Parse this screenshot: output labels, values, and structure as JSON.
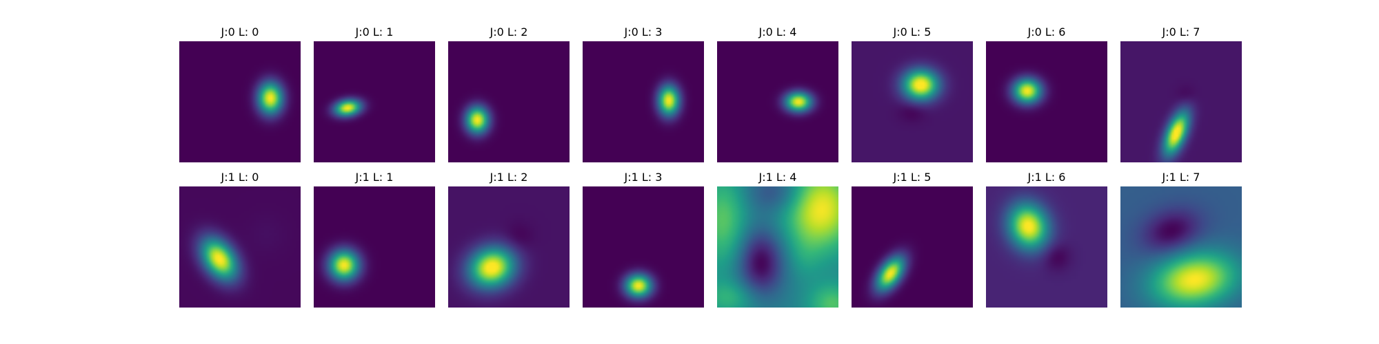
{
  "chart_data": {
    "type": "heatmap",
    "colormap": "viridis",
    "colormap_stops": [
      "#440154",
      "#482878",
      "#3e4989",
      "#31688e",
      "#26828e",
      "#1f9e89",
      "#35b779",
      "#6ece58",
      "#b5de2b",
      "#fde725"
    ],
    "grid": {
      "rows": 2,
      "cols": 8
    },
    "axes_visible": false,
    "panels": [
      {
        "title": "J:0 L: 0",
        "background": 0.0,
        "blobs": [
          {
            "cx": 0.75,
            "cy": 0.47,
            "sx": 0.07,
            "sy": 0.09,
            "angle": 0,
            "amp": 1.0
          }
        ]
      },
      {
        "title": "J:0 L: 1",
        "background": 0.0,
        "blobs": [
          {
            "cx": 0.28,
            "cy": 0.55,
            "sx": 0.075,
            "sy": 0.045,
            "angle": -10,
            "amp": 1.0
          }
        ]
      },
      {
        "title": "J:0 L: 2",
        "background": 0.0,
        "blobs": [
          {
            "cx": 0.24,
            "cy": 0.65,
            "sx": 0.065,
            "sy": 0.075,
            "angle": 0,
            "amp": 1.0
          }
        ]
      },
      {
        "title": "J:0 L: 3",
        "background": 0.0,
        "blobs": [
          {
            "cx": 0.71,
            "cy": 0.49,
            "sx": 0.06,
            "sy": 0.085,
            "angle": 0,
            "amp": 1.0
          }
        ]
      },
      {
        "title": "J:0 L: 4",
        "background": 0.0,
        "blobs": [
          {
            "cx": 0.67,
            "cy": 0.5,
            "sx": 0.075,
            "sy": 0.055,
            "angle": 0,
            "amp": 1.0
          }
        ]
      },
      {
        "title": "J:0 L: 5",
        "background": 0.06,
        "blobs": [
          {
            "cx": 0.57,
            "cy": 0.36,
            "sx": 0.1,
            "sy": 0.085,
            "angle": 0,
            "amp": 1.0
          },
          {
            "cx": 0.5,
            "cy": 0.58,
            "sx": 0.08,
            "sy": 0.06,
            "angle": 0,
            "amp": -0.06
          }
        ]
      },
      {
        "title": "J:0 L: 6",
        "background": 0.0,
        "blobs": [
          {
            "cx": 0.34,
            "cy": 0.41,
            "sx": 0.08,
            "sy": 0.07,
            "angle": 0,
            "amp": 1.0
          }
        ]
      },
      {
        "title": "J:0 L: 7",
        "background": 0.06,
        "blobs": [
          {
            "cx": 0.46,
            "cy": 0.76,
            "sx": 0.055,
            "sy": 0.13,
            "angle": 22,
            "amp": 1.0
          },
          {
            "cx": 0.55,
            "cy": 0.45,
            "sx": 0.06,
            "sy": 0.06,
            "angle": 0,
            "amp": -0.05
          }
        ]
      },
      {
        "title": "J:1 L: 0",
        "background": 0.02,
        "blobs": [
          {
            "cx": 0.33,
            "cy": 0.6,
            "sx": 0.085,
            "sy": 0.13,
            "angle": -35,
            "amp": 1.0
          },
          {
            "cx": 0.72,
            "cy": 0.4,
            "sx": 0.12,
            "sy": 0.12,
            "angle": 0,
            "amp": 0.02
          }
        ]
      },
      {
        "title": "J:1 L: 1",
        "background": 0.0,
        "blobs": [
          {
            "cx": 0.25,
            "cy": 0.65,
            "sx": 0.085,
            "sy": 0.085,
            "angle": 0,
            "amp": 1.0
          }
        ]
      },
      {
        "title": "J:1 L: 2",
        "background": 0.05,
        "blobs": [
          {
            "cx": 0.36,
            "cy": 0.67,
            "sx": 0.13,
            "sy": 0.11,
            "angle": -20,
            "amp": 1.0
          },
          {
            "cx": 0.58,
            "cy": 0.42,
            "sx": 0.08,
            "sy": 0.08,
            "angle": 0,
            "amp": -0.05
          }
        ]
      },
      {
        "title": "J:1 L: 3",
        "background": 0.0,
        "blobs": [
          {
            "cx": 0.46,
            "cy": 0.82,
            "sx": 0.075,
            "sy": 0.065,
            "angle": 0,
            "amp": 1.0
          }
        ]
      },
      {
        "title": "J:1 L: 4",
        "background": 0.44,
        "blobs": [
          {
            "cx": 0.85,
            "cy": 0.18,
            "sx": 0.2,
            "sy": 0.24,
            "angle": 0,
            "amp": 0.56
          },
          {
            "cx": 0.05,
            "cy": 0.28,
            "sx": 0.14,
            "sy": 0.28,
            "angle": 0,
            "amp": 0.3
          },
          {
            "cx": 0.95,
            "cy": 0.97,
            "sx": 0.14,
            "sy": 0.12,
            "angle": 0,
            "amp": 0.28
          },
          {
            "cx": 0.1,
            "cy": 0.92,
            "sx": 0.16,
            "sy": 0.1,
            "angle": 0,
            "amp": 0.2
          },
          {
            "cx": 0.36,
            "cy": 0.63,
            "sx": 0.13,
            "sy": 0.19,
            "angle": 0,
            "amp": -0.44
          },
          {
            "cx": 0.5,
            "cy": 0.05,
            "sx": 0.18,
            "sy": 0.12,
            "angle": 0,
            "amp": -0.22
          },
          {
            "cx": 0.72,
            "cy": 0.58,
            "sx": 0.1,
            "sy": 0.14,
            "angle": 0,
            "amp": 0.08
          }
        ]
      },
      {
        "title": "J:1 L: 5",
        "background": 0.0,
        "blobs": [
          {
            "cx": 0.32,
            "cy": 0.72,
            "sx": 0.06,
            "sy": 0.11,
            "angle": 35,
            "amp": 1.0
          }
        ]
      },
      {
        "title": "J:1 L: 6",
        "background": 0.1,
        "blobs": [
          {
            "cx": 0.35,
            "cy": 0.33,
            "sx": 0.11,
            "sy": 0.13,
            "angle": -20,
            "amp": 0.92
          },
          {
            "cx": 0.58,
            "cy": 0.58,
            "sx": 0.08,
            "sy": 0.08,
            "angle": 0,
            "amp": -0.1
          }
        ]
      },
      {
        "title": "J:1 L: 7",
        "background": 0.3,
        "blobs": [
          {
            "cx": 0.61,
            "cy": 0.77,
            "sx": 0.24,
            "sy": 0.15,
            "angle": -10,
            "amp": 0.7
          },
          {
            "cx": 0.42,
            "cy": 0.37,
            "sx": 0.17,
            "sy": 0.12,
            "angle": -20,
            "amp": -0.3
          }
        ]
      }
    ]
  }
}
